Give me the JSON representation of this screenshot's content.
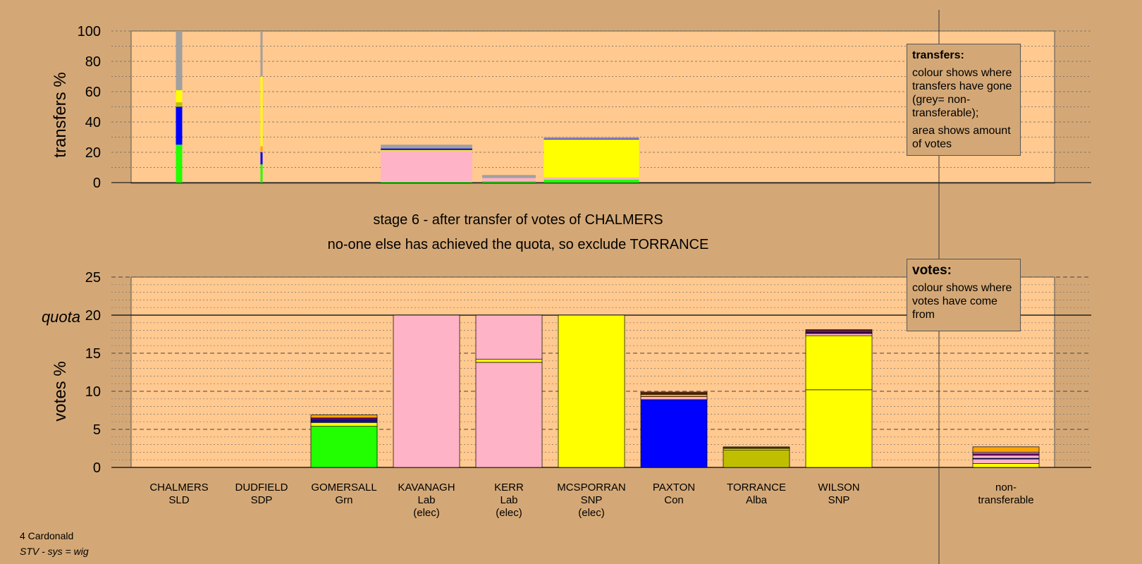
{
  "chart_data": {
    "type": "bar",
    "subtitle_lines": [
      "stage 6 - after transfer of votes of CHALMERS",
      "no-one else has achieved the quota, so exclude TORRANCE"
    ],
    "colors": {
      "panel_bg": "#ffc98f",
      "page_bg": "#d4a876",
      "Lab": "#ffb3c6",
      "SNP": "#ffff00",
      "Grn": "#22ff00",
      "Con": "#0000ff",
      "Alba": "#bfbf00",
      "SLD": "#ffa500",
      "SDP": "#800080",
      "nontransferable": "#a0a0a0"
    },
    "candidates": [
      {
        "name": "CHALMERS",
        "party": "SLD",
        "status": "",
        "transfers": [
          {
            "c": "Grn",
            "v": 25
          },
          {
            "c": "Con",
            "v": 25
          },
          {
            "c": "Alba",
            "v": 3
          },
          {
            "c": "SNP",
            "v": 8
          },
          {
            "c": "nontransferable",
            "v": 39
          }
        ],
        "transfer_width": 0.08,
        "votes": []
      },
      {
        "name": "DUDFIELD",
        "party": "SDP",
        "status": "",
        "transfers": [
          {
            "c": "Grn",
            "v": 12
          },
          {
            "c": "Con",
            "v": 8
          },
          {
            "c": "SLD",
            "v": 4
          },
          {
            "c": "SNP",
            "v": 46
          },
          {
            "c": "nontransferable",
            "v": 30
          }
        ],
        "transfer_width": 0.02,
        "votes": []
      },
      {
        "name": "GOMERSALL",
        "party": "Grn",
        "status": "",
        "transfers": [],
        "transfer_width": 0,
        "votes": [
          {
            "c": "Grn",
            "v": 5.4
          },
          {
            "c": "SNP",
            "v": 0.5
          },
          {
            "c": "Con",
            "v": 0.3
          },
          {
            "c": "Alba",
            "v": 0.1
          },
          {
            "c": "SDP",
            "v": 0.2
          },
          {
            "c": "SLD",
            "v": 0.4
          }
        ]
      },
      {
        "name": "KAVANAGH",
        "party": "Lab",
        "status": "(elec)",
        "transfers": [
          {
            "c": "Grn",
            "v": 0.5
          },
          {
            "c": "Lab",
            "v": 20.5
          },
          {
            "c": "SNP",
            "v": 0.5
          },
          {
            "c": "Con",
            "v": 1
          },
          {
            "c": "nontransferable",
            "v": 2.5
          }
        ],
        "transfer_width": 1.4,
        "votes": [
          {
            "c": "Lab",
            "v": 20
          }
        ]
      },
      {
        "name": "KERR",
        "party": "Lab",
        "status": "(elec)",
        "transfers": [
          {
            "c": "Grn",
            "v": 1
          },
          {
            "c": "Lab",
            "v": 2
          },
          {
            "c": "nontransferable",
            "v": 2
          }
        ],
        "transfer_width": 0.7,
        "votes": [
          {
            "c": "Lab",
            "v": 13.8
          },
          {
            "c": "SNP",
            "v": 0.4
          },
          {
            "c": "Lab",
            "v": 5.8
          }
        ]
      },
      {
        "name": "MCSPORRAN",
        "party": "SNP",
        "status": "(elec)",
        "transfers": [
          {
            "c": "Grn",
            "v": 2
          },
          {
            "c": "Lab",
            "v": 1.5
          },
          {
            "c": "SNP",
            "v": 25
          },
          {
            "c": "Con",
            "v": 0.5
          },
          {
            "c": "nontransferable",
            "v": 1
          }
        ],
        "transfer_width": 1.5,
        "votes": [
          {
            "c": "SNP",
            "v": 20
          }
        ]
      },
      {
        "name": "PAXTON",
        "party": "Con",
        "status": "",
        "transfers": [],
        "transfer_width": 0,
        "votes": [
          {
            "c": "Con",
            "v": 8.9
          },
          {
            "c": "Lab",
            "v": 0.4
          },
          {
            "c": "SLD",
            "v": 0.3
          },
          {
            "c": "SDP",
            "v": 0.2
          },
          {
            "c": "SLD",
            "v": 0.1
          }
        ]
      },
      {
        "name": "TORRANCE",
        "party": "Alba",
        "status": "",
        "transfers": [],
        "transfer_width": 0,
        "votes": [
          {
            "c": "Alba",
            "v": 2.3
          },
          {
            "c": "SNP",
            "v": 0.2
          },
          {
            "c": "SDP",
            "v": 0.1
          },
          {
            "c": "SLD",
            "v": 0.1
          }
        ]
      },
      {
        "name": "WILSON",
        "party": "SNP",
        "status": "",
        "transfers": [],
        "transfer_width": 0,
        "votes": [
          {
            "c": "SNP",
            "v": 10.2
          },
          {
            "c": "SNP",
            "v": 7.1
          },
          {
            "c": "Lab",
            "v": 0.3
          },
          {
            "c": "Con",
            "v": 0.1
          },
          {
            "c": "SDP",
            "v": 0.3
          },
          {
            "c": "SLD",
            "v": 0.1
          }
        ]
      }
    ],
    "nontransferable": {
      "label1": "non-",
      "label2": "transferable",
      "votes": [
        {
          "c": "SNP",
          "v": 0.5
        },
        {
          "c": "Lab",
          "v": 0.6
        },
        {
          "c": "Con",
          "v": 0.1
        },
        {
          "c": "Lab",
          "v": 0.4
        },
        {
          "c": "SDP",
          "v": 0.2
        },
        {
          "c": "Lab",
          "v": 0.2
        },
        {
          "c": "SLD",
          "v": 0.7
        }
      ]
    },
    "top_axis": {
      "ylabel": "transfers %",
      "ylim": [
        0,
        100
      ],
      "ticks": [
        "0",
        "20",
        "40",
        "60",
        "80",
        "100"
      ]
    },
    "bottom_axis": {
      "ylabel": "votes %",
      "ylim": [
        0,
        25
      ],
      "ticks": [
        "0",
        "5",
        "10",
        "15",
        "20",
        "25"
      ],
      "quota_label": "quota",
      "quota_value": 20
    }
  },
  "legend_transfers": {
    "title": "transfers:",
    "line1": "colour shows where transfers have gone (grey= non-transferable);",
    "line2": "area shows amount of votes"
  },
  "legend_votes": {
    "title": "votes:",
    "line1": "colour shows where votes have come from"
  },
  "footer": {
    "ward": "4 Cardonald",
    "system": "STV - sys = wig"
  }
}
